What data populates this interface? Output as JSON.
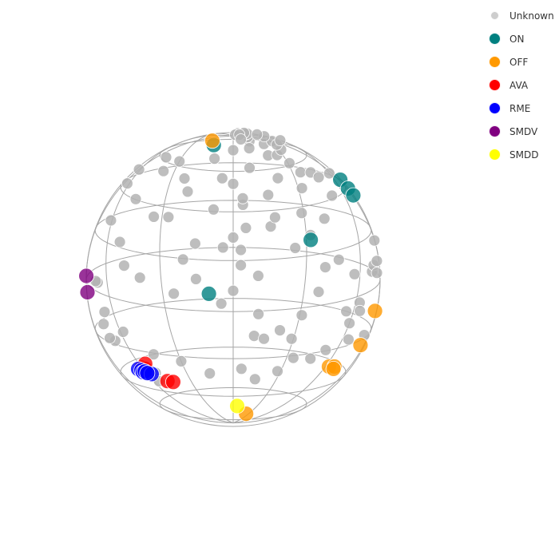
{
  "chart_data": {
    "type": "scatter",
    "projection": "sphere-3d",
    "grid": true,
    "legend_position": "top-right",
    "series": [
      {
        "name": "Unknown",
        "color": "#b3b3b3",
        "points": [
          [
            -68,
            -6
          ],
          [
            -70,
            -5
          ],
          [
            -61,
            18
          ],
          [
            -63,
            36
          ],
          [
            -63,
            44
          ],
          [
            -48,
            -3
          ],
          [
            -51,
            7
          ],
          [
            -47,
            25
          ],
          [
            -34,
            15
          ],
          [
            -40,
            -9
          ],
          [
            -37,
            38
          ],
          [
            -43,
            48
          ],
          [
            -25,
            -17
          ],
          [
            -27,
            14
          ],
          [
            -30,
            43
          ],
          [
            -23,
            32
          ],
          [
            -15,
            -12
          ],
          [
            -20,
            -4
          ],
          [
            -15,
            2
          ],
          [
            -20,
            25
          ],
          [
            -8,
            16
          ],
          [
            -10,
            43
          ],
          [
            -5,
            -22
          ],
          [
            -5,
            31
          ],
          [
            0,
            -17
          ],
          [
            0,
            4
          ],
          [
            0,
            28
          ],
          [
            0,
            49
          ],
          [
            3,
            -7
          ],
          [
            3,
            -1
          ],
          [
            5,
            8
          ],
          [
            4,
            18
          ],
          [
            4,
            21
          ],
          [
            8,
            37
          ],
          [
            10,
            -11
          ],
          [
            10,
            -35
          ],
          [
            11,
            -26
          ],
          [
            12,
            58
          ],
          [
            13,
            64
          ],
          [
            14,
            69
          ],
          [
            14,
            83
          ],
          [
            15,
            -36
          ],
          [
            15,
            9
          ],
          [
            15,
            23
          ],
          [
            17,
            13
          ],
          [
            20,
            46
          ],
          [
            21,
            32
          ],
          [
            22,
            56
          ],
          [
            18,
            72
          ],
          [
            19,
            77
          ],
          [
            15,
            87
          ],
          [
            25,
            1
          ],
          [
            26,
            47
          ],
          [
            29,
            16
          ],
          [
            29,
            -35
          ],
          [
            31,
            -25
          ],
          [
            32,
            7
          ],
          [
            31,
            42
          ],
          [
            32,
            28
          ],
          [
            32,
            52
          ],
          [
            33,
            61
          ],
          [
            34,
            -43
          ],
          [
            35,
            37
          ],
          [
            33,
            57
          ],
          [
            36,
            69
          ],
          [
            36,
            74
          ],
          [
            37,
            86
          ],
          [
            37,
            -15
          ],
          [
            39,
            -5
          ],
          [
            40,
            15
          ],
          [
            42,
            38
          ],
          [
            46,
            -1
          ],
          [
            46,
            36
          ],
          [
            49,
            27
          ],
          [
            52,
            -37
          ],
          [
            55,
            -20
          ],
          [
            56,
            -5
          ],
          [
            55,
            67
          ],
          [
            60,
            -24
          ],
          [
            60,
            41
          ],
          [
            63,
            -15
          ],
          [
            65,
            -18
          ],
          [
            65,
            -30
          ],
          [
            71,
            -1
          ],
          [
            73,
            2
          ],
          [
            78,
            0
          ],
          [
            80,
            -25
          ],
          [
            79,
            5
          ],
          [
            82,
            14
          ],
          [
            -52,
            -48
          ],
          [
            -55,
            -52
          ],
          [
            -68,
            -30
          ],
          [
            -72,
            -28
          ],
          [
            -67,
            -18
          ],
          [
            -72,
            -22
          ],
          [
            -58,
            -28
          ],
          [
            -45,
            -40
          ],
          [
            -30,
            -45
          ],
          [
            -15,
            -52
          ],
          [
            5,
            -50
          ],
          [
            15,
            -55
          ],
          [
            28,
            -50
          ],
          [
            45,
            -42
          ],
          [
            -4,
            0
          ],
          [
            6,
            60
          ],
          [
            10,
            51
          ],
          [
            22,
            -32
          ]
        ]
      },
      {
        "name": "ON",
        "color": "#008080",
        "points": [
          [
            72,
            40
          ],
          [
            75,
            36
          ],
          [
            77,
            33
          ],
          [
            32,
            5
          ],
          [
            -10,
            -18
          ],
          [
            -13,
            54
          ]
        ]
      },
      {
        "name": "OFF",
        "color": "#ff9900",
        "points": [
          [
            84,
            -14
          ],
          [
            82,
            -29
          ],
          [
            63,
            -43
          ],
          [
            68,
            -42
          ],
          [
            69,
            -43
          ],
          [
            25,
            -78
          ],
          [
            -16,
            59
          ]
        ]
      },
      {
        "name": "AVA",
        "color": "#ff0000",
        "points": [
          [
            -60,
            -44
          ],
          [
            -58,
            -45
          ],
          [
            -55,
            -43
          ],
          [
            -48,
            -53
          ],
          [
            -44,
            -54
          ]
        ]
      },
      {
        "name": "RME",
        "color": "#0000ff",
        "points": [
          [
            -64,
            -44
          ],
          [
            -62,
            -45
          ],
          [
            -62,
            -46
          ],
          [
            -60,
            -46
          ],
          [
            -56,
            -48
          ],
          [
            -59,
            -47
          ]
        ]
      },
      {
        "name": "SMDV",
        "color": "#800080",
        "points": [
          [
            -88,
            1
          ],
          [
            -86,
            -6
          ]
        ]
      },
      {
        "name": "SMDD",
        "color": "#ffff00",
        "points": [
          [
            5,
            -72
          ]
        ]
      }
    ],
    "marker_size": {
      "Unknown": "small",
      "highlighted": "large"
    }
  },
  "legend": {
    "items": [
      {
        "label": "Unknown",
        "color": "#c8c8c8",
        "size": "small"
      },
      {
        "label": "ON",
        "color": "#008080",
        "size": "large"
      },
      {
        "label": "OFF",
        "color": "#ff9900",
        "size": "large"
      },
      {
        "label": "AVA",
        "color": "#ff0000",
        "size": "large"
      },
      {
        "label": "RME",
        "color": "#0000ff",
        "size": "large"
      },
      {
        "label": "SMDV",
        "color": "#800080",
        "size": "large"
      },
      {
        "label": "SMDD",
        "color": "#ffff00",
        "size": "large"
      }
    ]
  }
}
